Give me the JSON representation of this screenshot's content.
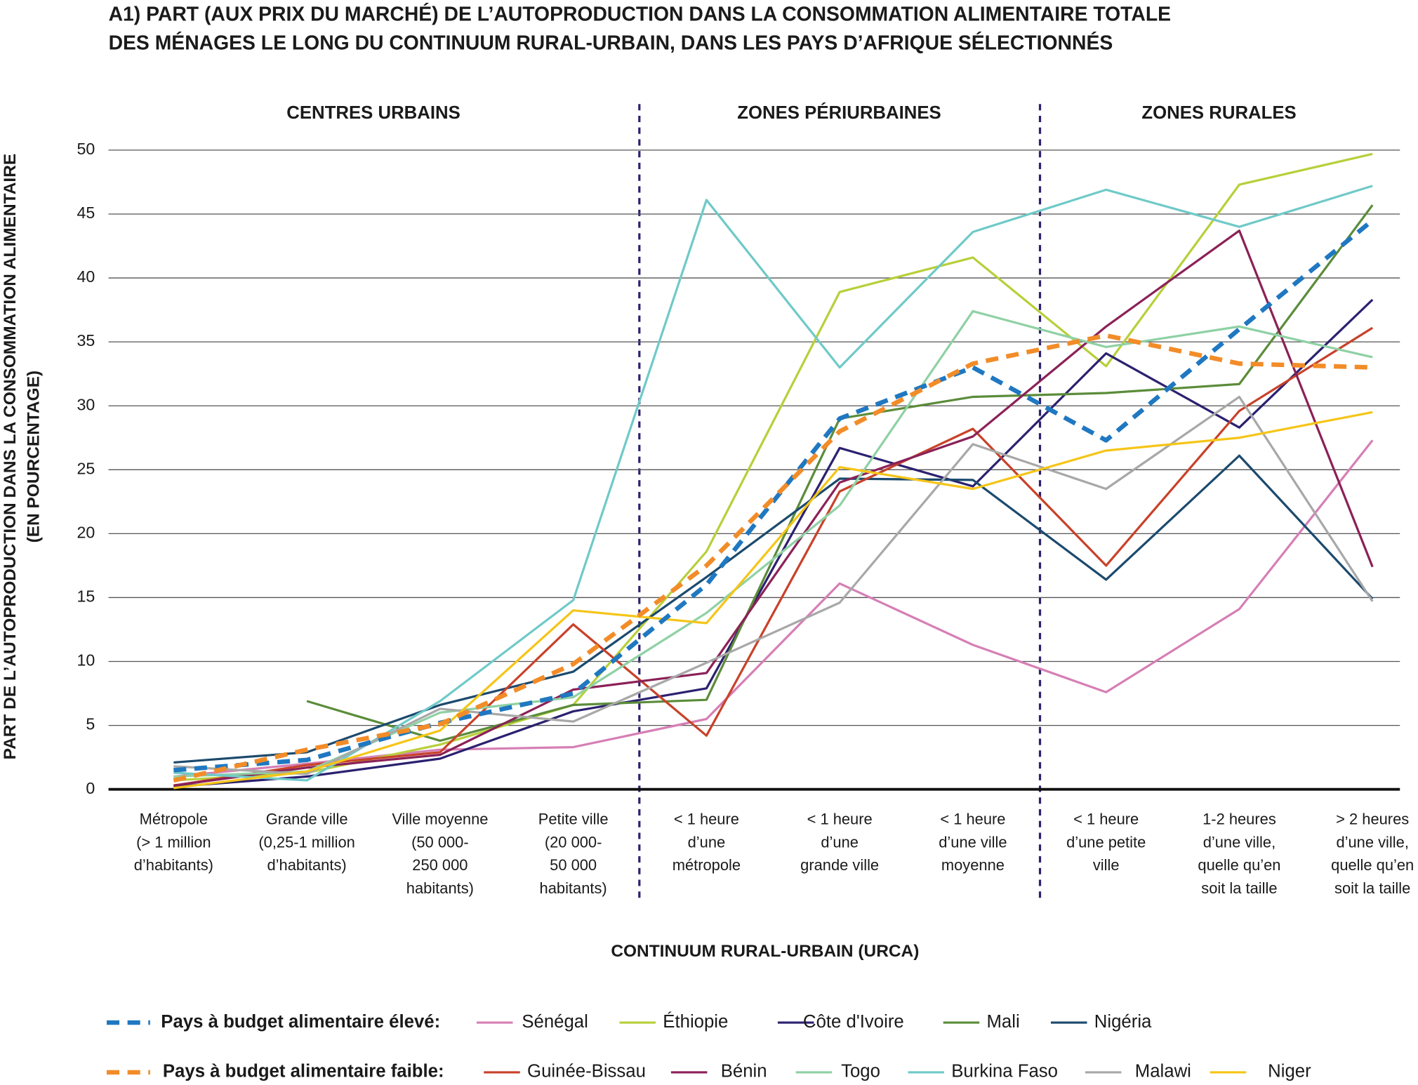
{
  "chart_data": {
    "type": "line",
    "title": [
      "A1) PART (AUX PRIX DU MARCHÉ) DE L’AUTOPRODUCTION DANS LA CONSOMMATION ALIMENTAIRE TOTALE",
      "DES MÉNAGES LE LONG DU CONTINUUM RURAL-URBAIN, DANS LES PAYS D’AFRIQUE SÉLECTIONNÉS"
    ],
    "y_label": [
      "PART DE L’AUTOPRODUCTION DANS LA CONSOMMATION ALIMENTAIRE",
      "(EN POURCENTAGE)"
    ],
    "x_label": "CONTINUUM RURAL-URBAIN (URCA)",
    "zones": [
      "CENTRES URBAINS",
      "ZONES PÉRIURBAINES",
      "ZONES RURALES"
    ],
    "categories": [
      "Métropole\n(> 1 million\nd’habitants)",
      "Grande ville\n(0,25-1 million\nd’habitants)",
      "Ville moyenne\n(50 000-\n250 000\nhabitants)",
      "Petite ville\n(20 000-\n50 000\nhabitants)",
      "< 1 heure\nd’une\nmétropole",
      "< 1 heure\nd’une\ngrande ville",
      "< 1 heure\nd’une ville\nmoyenne",
      "< 1 heure\nd’une petite\nville",
      "1-2 heures\nd’une ville,\nquelle qu’en\nsoit la taille",
      "> 2 heures\nd’une ville,\nquelle qu’en\nsoit la taille"
    ],
    "ylim": [
      0,
      50
    ],
    "yticks": [
      0,
      5,
      10,
      15,
      20,
      25,
      30,
      35,
      40,
      45,
      50
    ],
    "grid": true,
    "series": [
      {
        "name": "Pays à budget alimentaire élevé:",
        "color": "#1f78c1",
        "dashed": true,
        "values": [
          1.5,
          2.3,
          5.2,
          7.5,
          16,
          29,
          33,
          27.3,
          36,
          44.5
        ]
      },
      {
        "name": "Sénégal",
        "color": "#d67fb5",
        "values": [
          1.0,
          2.0,
          3.1,
          3.3,
          5.5,
          16.1,
          11.3,
          7.6,
          14.1,
          27.3
        ]
      },
      {
        "name": "Éthiopie",
        "color": "#b8cf3a",
        "values": [
          0.7,
          1.3,
          3.5,
          6.6,
          18.6,
          38.9,
          41.6,
          33.1,
          47.3,
          49.7
        ]
      },
      {
        "name": "Côte d'Ivoire",
        "color": "#2b2170",
        "values": [
          0.2,
          1.0,
          2.4,
          6.1,
          7.9,
          26.7,
          23.7,
          34.1,
          28.3,
          38.3
        ]
      },
      {
        "name": "Mali",
        "color": "#5b8c3a",
        "values": [
          null,
          6.9,
          3.8,
          6.6,
          7.0,
          29,
          30.7,
          31,
          31.7,
          45.7
        ]
      },
      {
        "name": "Nigéria",
        "color": "#1c4a6e",
        "values": [
          2.1,
          2.9,
          6.6,
          9.2,
          16.6,
          24.3,
          24.2,
          16.4,
          26.1,
          14.9
        ]
      },
      {
        "name": "Pays à budget alimentaire faible:",
        "color": "#f28c28",
        "dashed": true,
        "values": [
          0.7,
          3.1,
          5.1,
          9.8,
          17.5,
          28,
          33.3,
          35.5,
          33.3,
          33
        ]
      },
      {
        "name": "Guinée-Bissau",
        "color": "#c8422a",
        "values": [
          0.3,
          1.9,
          2.9,
          12.9,
          4.2,
          23.3,
          28.2,
          17.5,
          29.6,
          36.1
        ]
      },
      {
        "name": "Bénin",
        "color": "#8b2157",
        "values": [
          0.3,
          1.7,
          2.7,
          7.8,
          9.1,
          24.0,
          27.6,
          36.2,
          43.7,
          17.4
        ]
      },
      {
        "name": "Togo",
        "color": "#8fd1a4",
        "values": [
          1.0,
          1.4,
          6.0,
          7.2,
          13.8,
          22.2,
          37.4,
          34.6,
          36.2,
          33.8
        ]
      },
      {
        "name": "Burkina Faso",
        "color": "#6fcac8",
        "values": [
          1.3,
          0.7,
          6.9,
          14.8,
          46.1,
          33.0,
          43.6,
          46.9,
          44.0,
          47.2
        ]
      },
      {
        "name": "Malawi",
        "color": "#a8a8a8",
        "values": [
          1.8,
          1.2,
          6.3,
          5.3,
          9.9,
          14.6,
          27.0,
          23.5,
          30.7,
          14.7
        ]
      },
      {
        "name": "Niger",
        "color": "#f5c518",
        "values": [
          0.1,
          1.4,
          4.6,
          14.0,
          13.0,
          25.2,
          23.5,
          26.5,
          27.5,
          29.5
        ]
      }
    ]
  }
}
